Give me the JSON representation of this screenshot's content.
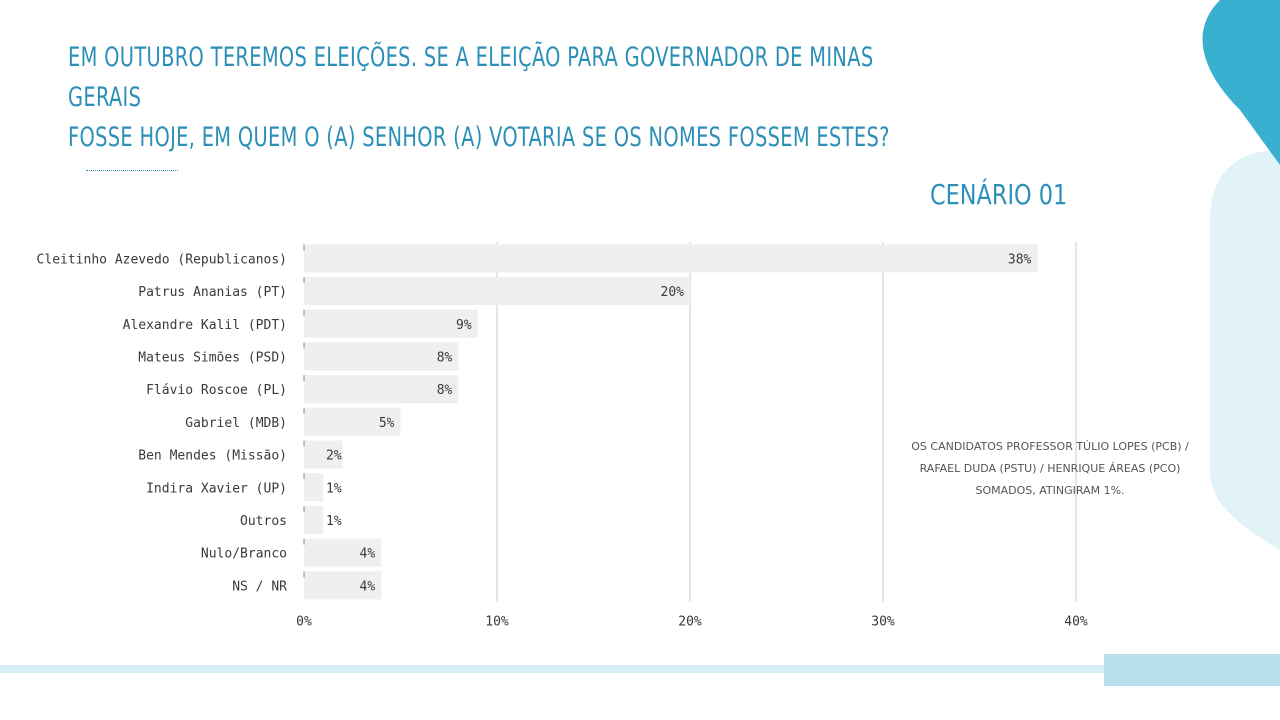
{
  "slide": {
    "title_lines": [
      "EM OUTUBRO TEREMOS ELEIÇÕES. SE A ELEIÇÃO PARA GOVERNADOR DE MINAS GERAIS",
      "FOSSE HOJE, EM QUEM O (A) SENHOR (A) VOTARIA SE OS NOMES FOSSEM ESTES?"
    ],
    "scenario": "CENÁRIO 01",
    "note_lines": [
      "OS CANDIDATOS PROFESSOR TÚLIO LOPES (PCB) /",
      "RAFAEL DUDA (PSTU) / HENRIQUE ÁREAS (PCO)",
      "SOMADOS, ATINGIRAM 1%."
    ],
    "colors": {
      "accent": "#2b8fb8",
      "bar": "#edeff0",
      "grid": "#cccccc",
      "deco_dark": "#3ab0d0",
      "deco_light": "#e2f3f8",
      "footer_line": "#d6eef5",
      "footer_box": "#b8e0ec"
    }
  },
  "chart_data": {
    "type": "bar",
    "orientation": "horizontal",
    "categories": [
      "Cleitinho Azevedo (Republicanos)",
      "Patrus Ananias (PT)",
      "Alexandre Kalil (PDT)",
      "Mateus Simões (PSD)",
      "Flávio Roscoe (PL)",
      "Gabriel (MDB)",
      "Ben Mendes (Missão)",
      "Indira Xavier (UP)",
      "Outros",
      "Nulo/Branco",
      "NS / NR"
    ],
    "values": [
      38,
      20,
      9,
      8,
      8,
      5,
      2,
      1,
      1,
      4,
      4
    ],
    "value_labels": [
      "38%",
      "20%",
      "9%",
      "8%",
      "8%",
      "5%",
      "2%",
      "1%",
      "1%",
      "4%",
      "4%"
    ],
    "xlim": [
      0,
      40
    ],
    "ticks": [
      0,
      10,
      20,
      30,
      40
    ],
    "tick_labels": [
      "0%",
      "10%",
      "20%",
      "30%",
      "40%"
    ],
    "grid": true
  }
}
